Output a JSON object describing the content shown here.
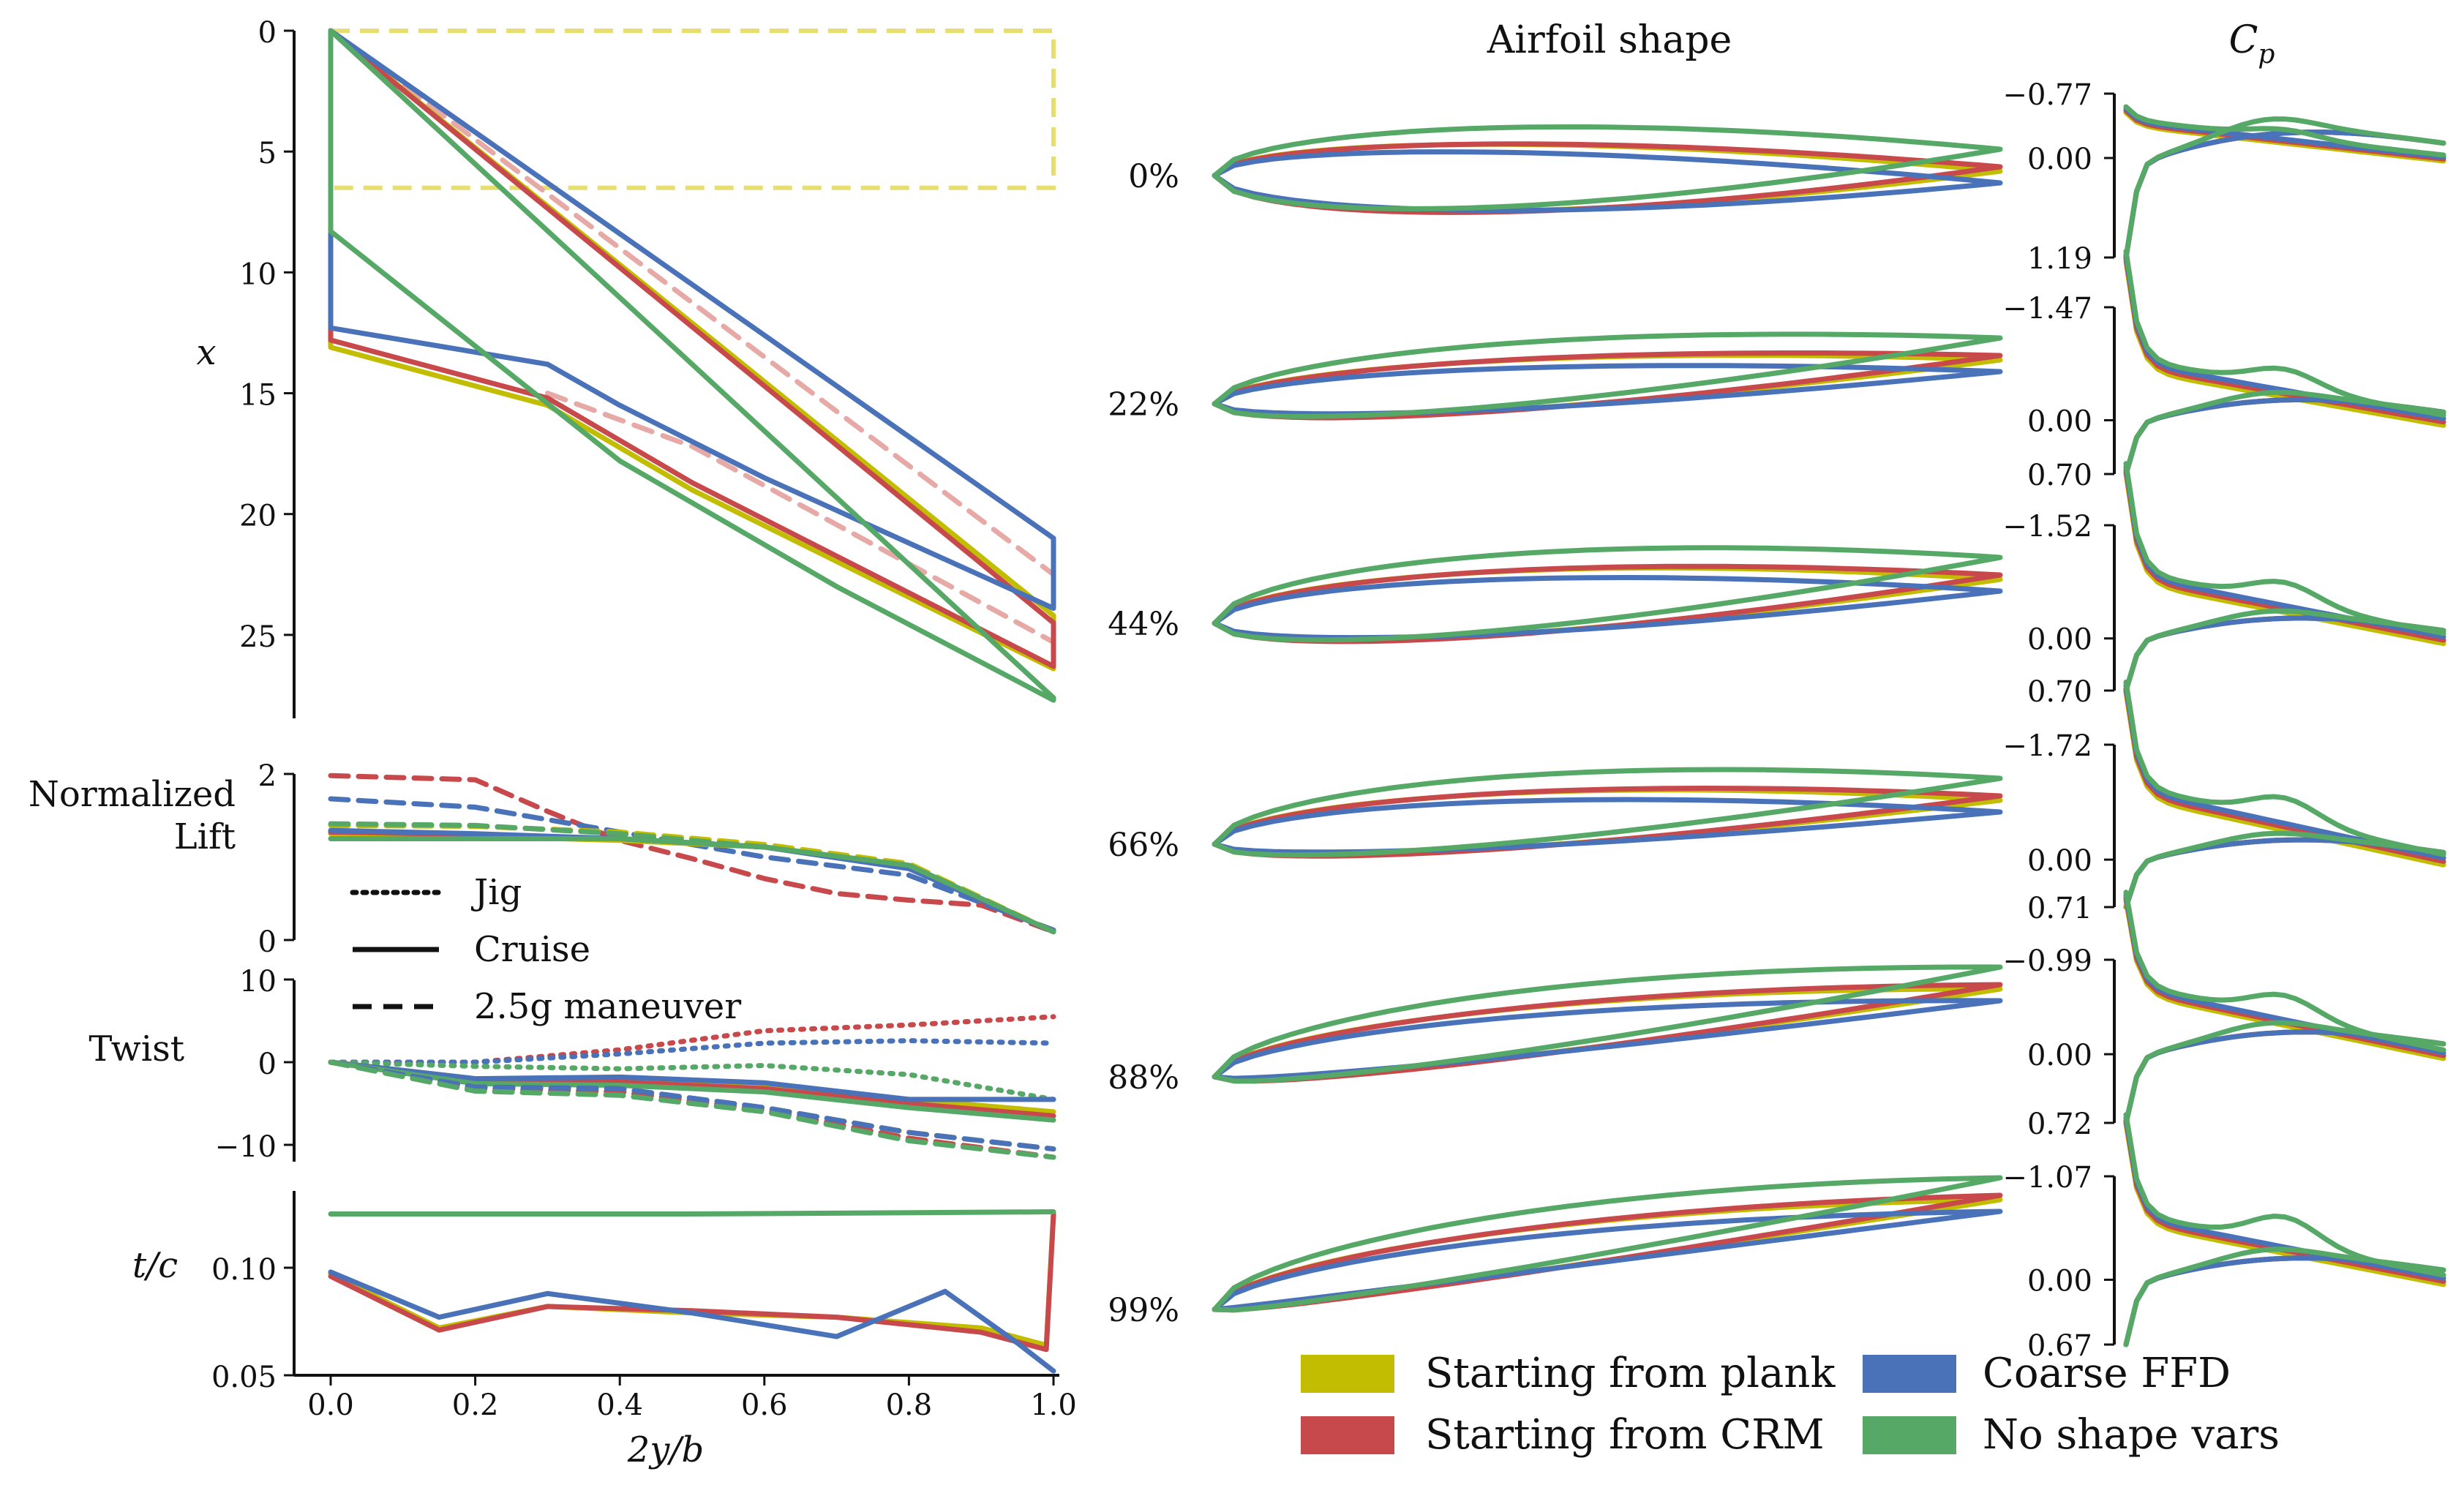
{
  "colors": {
    "plank": "#c2bd00",
    "crm": "#c8494b",
    "ffd": "#4a72b8",
    "noshape": "#56a867",
    "plan_box": "#e6df6f",
    "crm_faded": "#e6a9a5"
  },
  "planform": {
    "ylabel": "x",
    "yticks": [
      "0",
      "5",
      "10",
      "15",
      "20",
      "25"
    ],
    "ylim": [
      0,
      28
    ]
  },
  "lift": {
    "ylabel_line1": "Normalized",
    "ylabel_line2": "Lift",
    "yticks": [
      "0",
      "2"
    ]
  },
  "twist": {
    "ylabel": "Twist",
    "yticks": [
      "10",
      "0",
      "−10"
    ]
  },
  "tc": {
    "ylabel": "t/c",
    "yticks": [
      "0.10",
      "0.05"
    ]
  },
  "xaxis": {
    "label": "2y/b",
    "ticks": [
      "0.0",
      "0.2",
      "0.4",
      "0.6",
      "0.8",
      "1.0"
    ]
  },
  "linestyle_legend": [
    {
      "label": "Jig",
      "style": "dotted"
    },
    {
      "label": "Cruise",
      "style": "solid"
    },
    {
      "label": "2.5g maneuver",
      "style": "dashed"
    }
  ],
  "airfoil_title": "Airfoil shape",
  "cp_title_main": "C",
  "cp_title_sub": "p",
  "stations": [
    {
      "label": "0%",
      "cp_top": "−0.77",
      "cp_mid": "0.00",
      "cp_bottom": "1.19"
    },
    {
      "label": "22%",
      "cp_top": "−1.47",
      "cp_mid": "0.00",
      "cp_bottom": "0.70"
    },
    {
      "label": "44%",
      "cp_top": "−1.52",
      "cp_mid": "0.00",
      "cp_bottom": "0.70"
    },
    {
      "label": "66%",
      "cp_top": "−1.72",
      "cp_mid": "0.00",
      "cp_bottom": "0.71"
    },
    {
      "label": "88%",
      "cp_top": "−0.99",
      "cp_mid": "0.00",
      "cp_bottom": "0.72"
    },
    {
      "label": "99%",
      "cp_top": "−1.07",
      "cp_mid": "0.00",
      "cp_bottom": "0.67"
    }
  ],
  "legend": [
    {
      "label": "Starting from plank",
      "color_key": "plank"
    },
    {
      "label": "Starting from CRM",
      "color_key": "crm"
    },
    {
      "label": "Coarse FFD",
      "color_key": "ffd"
    },
    {
      "label": "No shape vars",
      "color_key": "noshape"
    }
  ],
  "chart_data": {
    "type": "line",
    "series_names": [
      "Starting from plank",
      "Starting from CRM",
      "Coarse FFD",
      "No shape vars"
    ],
    "planform": {
      "xlim": [
        0,
        1
      ],
      "ylim": [
        0,
        28
      ],
      "initial_box": [
        [
          0,
          0
        ],
        [
          1,
          0
        ],
        [
          1,
          6.5
        ],
        [
          0,
          6.5
        ]
      ],
      "crm_initial_le": [
        [
          0,
          0
        ],
        [
          1,
          22.5
        ]
      ],
      "crm_initial_te": [
        [
          0.3,
          15
        ],
        [
          0.5,
          17.2
        ],
        [
          1,
          25.3
        ]
      ],
      "outlines": [
        {
          "name": "Starting from plank",
          "le": [
            [
              0,
              0
            ],
            [
              1,
              24.2
            ]
          ],
          "te": [
            [
              0,
              13.1
            ],
            [
              0.3,
              15.5
            ],
            [
              0.5,
              19
            ],
            [
              1,
              26.4
            ]
          ]
        },
        {
          "name": "Starting from CRM",
          "le": [
            [
              0,
              0
            ],
            [
              1,
              24.5
            ]
          ],
          "te": [
            [
              0,
              12.8
            ],
            [
              0.3,
              15.2
            ],
            [
              0.5,
              18.7
            ],
            [
              1,
              26.3
            ]
          ]
        },
        {
          "name": "Coarse FFD",
          "le": [
            [
              0,
              0
            ],
            [
              1,
              21
            ]
          ],
          "te": [
            [
              0,
              12.3
            ],
            [
              0.3,
              13.8
            ],
            [
              0.4,
              15.5
            ],
            [
              0.6,
              18.5
            ],
            [
              1,
              23.9
            ]
          ]
        },
        {
          "name": "No shape vars",
          "le": [
            [
              0,
              0
            ],
            [
              1,
              27.6
            ]
          ],
          "te": [
            [
              0,
              8.3
            ],
            [
              0.4,
              17.8
            ],
            [
              0.7,
              23
            ],
            [
              1,
              27.7
            ]
          ]
        }
      ]
    },
    "lift": {
      "xlim": [
        0,
        1
      ],
      "ylim": [
        0,
        2
      ],
      "series": [
        {
          "name": "Starting from CRM",
          "condition": "2.5g maneuver",
          "x": [
            0,
            0.2,
            0.3,
            0.4,
            0.5,
            0.6,
            0.7,
            0.8,
            0.9,
            1.0
          ],
          "y": [
            1.98,
            1.93,
            1.55,
            1.2,
            0.98,
            0.74,
            0.56,
            0.48,
            0.42,
            0.1
          ]
        },
        {
          "name": "Coarse FFD",
          "condition": "2.5g maneuver",
          "x": [
            0,
            0.2,
            0.4,
            0.6,
            0.8,
            1.0
          ],
          "y": [
            1.7,
            1.6,
            1.3,
            1.0,
            0.78,
            0.12
          ]
        },
        {
          "name": "Starting from plank",
          "condition": "2.5g maneuver",
          "x": [
            0,
            0.2,
            0.4,
            0.6,
            0.8,
            1.0
          ],
          "y": [
            1.38,
            1.37,
            1.3,
            1.15,
            0.92,
            0.1
          ]
        },
        {
          "name": "No shape vars",
          "condition": "2.5g maneuver",
          "x": [
            0,
            0.2,
            0.4,
            0.6,
            0.8,
            1.0
          ],
          "y": [
            1.4,
            1.38,
            1.28,
            1.12,
            0.88,
            0.1
          ]
        },
        {
          "name": "Starting from plank",
          "condition": "Cruise",
          "x": [
            0,
            0.2,
            0.4,
            0.6,
            0.8,
            1.0
          ],
          "y": [
            1.28,
            1.25,
            1.2,
            1.12,
            0.88,
            0.1
          ]
        },
        {
          "name": "Starting from CRM",
          "condition": "Cruise",
          "x": [
            0,
            0.2,
            0.4,
            0.6,
            0.8,
            1.0
          ],
          "y": [
            1.3,
            1.27,
            1.22,
            1.12,
            0.88,
            0.1
          ]
        },
        {
          "name": "Coarse FFD",
          "condition": "Cruise",
          "x": [
            0,
            0.2,
            0.4,
            0.6,
            0.8,
            1.0
          ],
          "y": [
            1.32,
            1.28,
            1.22,
            1.12,
            0.86,
            0.1
          ]
        },
        {
          "name": "No shape vars",
          "condition": "Cruise",
          "x": [
            0,
            0.2,
            0.4,
            0.6,
            0.8,
            1.0
          ],
          "y": [
            1.22,
            1.22,
            1.22,
            1.12,
            0.9,
            0.1
          ]
        }
      ]
    },
    "twist": {
      "xlim": [
        0,
        1
      ],
      "ylim": [
        -12,
        10
      ],
      "series": [
        {
          "name": "Starting from CRM",
          "condition": "Jig",
          "x": [
            0,
            0.2,
            0.4,
            0.6,
            0.8,
            1.0
          ],
          "y": [
            0,
            0,
            1.5,
            3.8,
            4.5,
            5.5
          ]
        },
        {
          "name": "Coarse FFD",
          "condition": "Jig",
          "x": [
            0,
            0.2,
            0.4,
            0.6,
            0.8,
            1.0
          ],
          "y": [
            0,
            0,
            1.0,
            2.3,
            2.6,
            2.3
          ]
        },
        {
          "name": "No shape vars",
          "condition": "Jig",
          "x": [
            0,
            0.2,
            0.4,
            0.6,
            0.8,
            1.0
          ],
          "y": [
            0,
            -0.5,
            -0.8,
            -0.4,
            -1.5,
            -4.5
          ]
        },
        {
          "name": "Starting from plank",
          "condition": "Cruise",
          "x": [
            0,
            0.2,
            0.4,
            0.6,
            0.8,
            1.0
          ],
          "y": [
            0,
            -2,
            -2.2,
            -3,
            -4.5,
            -6
          ]
        },
        {
          "name": "Starting from CRM",
          "condition": "Cruise",
          "x": [
            0,
            0.2,
            0.4,
            0.6,
            0.8,
            1.0
          ],
          "y": [
            0,
            -2.2,
            -2.4,
            -3.2,
            -5,
            -6.5
          ]
        },
        {
          "name": "Coarse FFD",
          "condition": "Cruise",
          "x": [
            0,
            0.2,
            0.4,
            0.6,
            0.8,
            1.0
          ],
          "y": [
            0,
            -2,
            -1.8,
            -2.5,
            -4.5,
            -4.5
          ]
        },
        {
          "name": "No shape vars",
          "condition": "Cruise",
          "x": [
            0,
            0.2,
            0.4,
            0.6,
            0.8,
            1.0
          ],
          "y": [
            0,
            -2.6,
            -2.8,
            -3.6,
            -5.5,
            -7
          ]
        },
        {
          "name": "Starting from plank",
          "condition": "2.5g maneuver",
          "x": [
            0,
            0.2,
            0.4,
            0.6,
            0.8,
            1.0
          ],
          "y": [
            0,
            -3,
            -3.5,
            -5.5,
            -8.5,
            -10.5
          ]
        },
        {
          "name": "Starting from CRM",
          "condition": "2.5g maneuver",
          "x": [
            0,
            0.2,
            0.4,
            0.6,
            0.8,
            1.0
          ],
          "y": [
            0,
            -3.2,
            -3.6,
            -5.8,
            -9.2,
            -11.5
          ]
        },
        {
          "name": "Coarse FFD",
          "condition": "2.5g maneuver",
          "x": [
            0,
            0.2,
            0.4,
            0.6,
            0.8,
            1.0
          ],
          "y": [
            0,
            -3,
            -3.2,
            -5.5,
            -8.5,
            -10.5
          ]
        },
        {
          "name": "No shape vars",
          "condition": "2.5g maneuver",
          "x": [
            0,
            0.2,
            0.4,
            0.6,
            0.8,
            1.0
          ],
          "y": [
            0,
            -3.5,
            -4,
            -6,
            -9.5,
            -11.5
          ]
        }
      ]
    },
    "thickness": {
      "xlim": [
        0,
        1
      ],
      "ylim": [
        0.05,
        0.13
      ],
      "series": [
        {
          "name": "Starting from plank",
          "x": [
            0,
            0.15,
            0.3,
            0.5,
            0.7,
            0.9,
            0.99,
            1.0
          ],
          "y": [
            0.097,
            0.072,
            0.082,
            0.079,
            0.077,
            0.072,
            0.064,
            0.125
          ]
        },
        {
          "name": "Starting from CRM",
          "x": [
            0,
            0.15,
            0.3,
            0.5,
            0.7,
            0.9,
            0.99,
            1.0
          ],
          "y": [
            0.096,
            0.071,
            0.082,
            0.08,
            0.077,
            0.07,
            0.062,
            0.125
          ]
        },
        {
          "name": "Coarse FFD",
          "x": [
            0,
            0.15,
            0.3,
            0.5,
            0.7,
            0.85,
            0.95,
            1.0
          ],
          "y": [
            0.098,
            0.077,
            0.088,
            0.079,
            0.068,
            0.089,
            0.065,
            0.052
          ]
        },
        {
          "name": "No shape vars",
          "x": [
            0,
            0.5,
            1.0
          ],
          "y": [
            0.125,
            0.125,
            0.126
          ]
        }
      ]
    },
    "airfoils": {
      "description": "Airfoil sections at spanwise stations for each optimization case",
      "stations": [
        "0%",
        "22%",
        "44%",
        "66%",
        "88%",
        "99%"
      ]
    },
    "cp": {
      "description": "Pressure coefficient distributions at spanwise stations (inverted axis)",
      "stations": [
        "0%",
        "22%",
        "44%",
        "66%",
        "88%",
        "99%"
      ]
    }
  }
}
